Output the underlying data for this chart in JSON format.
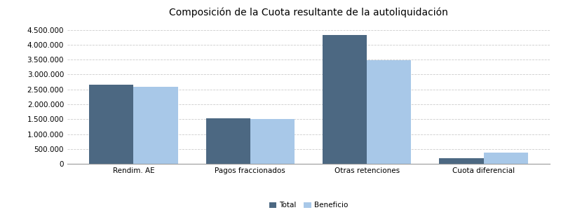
{
  "title": "Composición de la Cuota resultante de la autoliquidación",
  "categories": [
    "Rendim. AE",
    "Pagos fraccionados",
    "Otras retenciones",
    "Cuota diferencial"
  ],
  "total_values": [
    2650000,
    1540000,
    4330000,
    185000
  ],
  "beneficio_values": [
    2580000,
    1510000,
    3490000,
    385000
  ],
  "bar_color_total": "#4C6882",
  "bar_color_beneficio": "#A8C8E8",
  "background_color": "#FFFFFF",
  "grid_color": "#CCCCCC",
  "title_fontsize": 10,
  "tick_fontsize": 7.5,
  "legend_labels": [
    "Total",
    "Beneficio"
  ],
  "ylim": [
    0,
    4800000
  ],
  "yticks": [
    0,
    500000,
    1000000,
    1500000,
    2000000,
    2500000,
    3000000,
    3500000,
    4000000,
    4500000
  ]
}
